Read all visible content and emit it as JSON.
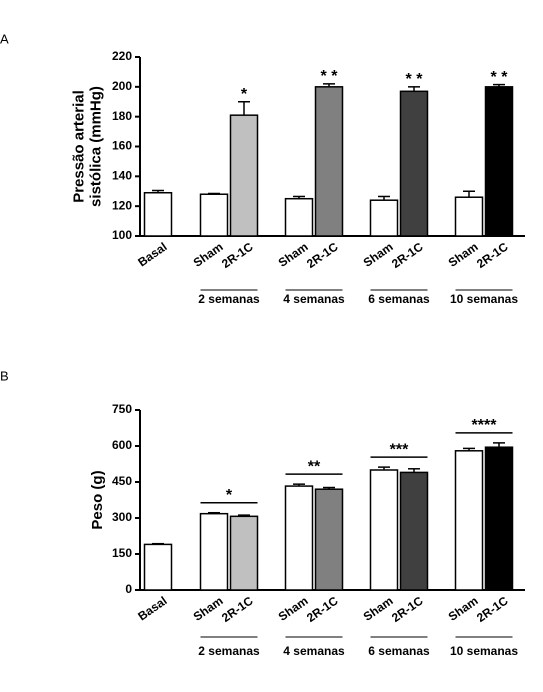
{
  "chart_data": [
    {
      "type": "bar",
      "panel": "A",
      "ylabel": [
        "Pressão arterial",
        "sistólica (mmHg)"
      ],
      "categories": [
        "Basal",
        "Sham",
        "2R-1C",
        "Sham",
        "2R-1C",
        "Sham",
        "2R-1C",
        "Sham",
        "2R-1C"
      ],
      "values": [
        129,
        128,
        181,
        125,
        200,
        124,
        197,
        126,
        200
      ],
      "errors": [
        1.5,
        0.5,
        9,
        1.5,
        2,
        2.5,
        3,
        4,
        1.5
      ],
      "colors": [
        "#ffffff",
        "#ffffff",
        "#c0c0c0",
        "#ffffff",
        "#808080",
        "#ffffff",
        "#404040",
        "#ffffff",
        "#000000"
      ],
      "groups": [
        {
          "label": "2 semanas",
          "significance": "*"
        },
        {
          "label": "4 semanas",
          "significance": "* *"
        },
        {
          "label": "6 semanas",
          "significance": "* *"
        },
        {
          "label": "10 semanas",
          "significance": "* *"
        }
      ],
      "significance_line": false,
      "ylim": [
        100,
        220
      ],
      "yticks": [
        100,
        120,
        140,
        160,
        180,
        200,
        220
      ]
    },
    {
      "type": "bar",
      "panel": "B",
      "ylabel": [
        "Peso (g)"
      ],
      "categories": [
        "Basal",
        "Sham",
        "2R-1C",
        "Sham",
        "2R-1C",
        "Sham",
        "2R-1C",
        "Sham",
        "2R-1C"
      ],
      "values": [
        190,
        318,
        307,
        433,
        420,
        500,
        490,
        580,
        595
      ],
      "errors": [
        3,
        4,
        5,
        8,
        7,
        12,
        15,
        10,
        18
      ],
      "colors": [
        "#ffffff",
        "#ffffff",
        "#c0c0c0",
        "#ffffff",
        "#808080",
        "#ffffff",
        "#404040",
        "#ffffff",
        "#000000"
      ],
      "groups": [
        {
          "label": "2 semanas",
          "significance": "*"
        },
        {
          "label": "4 semanas",
          "significance": "**"
        },
        {
          "label": "6 semanas",
          "significance": "***"
        },
        {
          "label": "10 semanas",
          "significance": "****"
        }
      ],
      "significance_line": true,
      "ylim": [
        0,
        750
      ],
      "yticks": [
        0,
        150,
        300,
        450,
        600,
        750
      ]
    }
  ]
}
